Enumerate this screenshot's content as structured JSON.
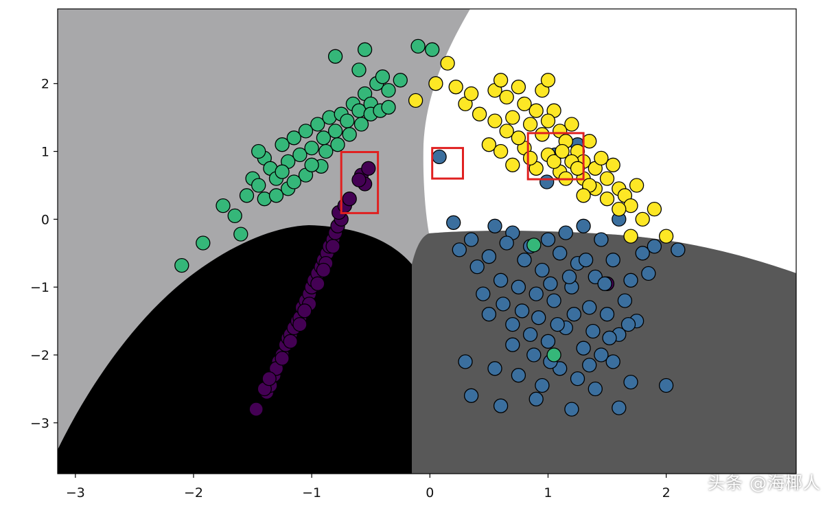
{
  "chart_data": {
    "type": "scatter",
    "title": "",
    "xlabel": "",
    "ylabel": "",
    "xlim": [
      -3.15,
      3.1
    ],
    "ylim": [
      -3.75,
      3.1
    ],
    "xticks": [
      -3,
      -2,
      -1,
      0,
      1,
      2
    ],
    "yticks": [
      -3,
      -2,
      -1,
      0,
      1,
      2
    ],
    "tick_labels_x": [
      "−3",
      "−2",
      "−1",
      "0",
      "1",
      "2"
    ],
    "tick_labels_y": [
      "−3",
      "−2",
      "−1",
      "0",
      "1",
      "2"
    ],
    "background_regions": [
      {
        "class": "green",
        "color": "#a8a8aa"
      },
      {
        "class": "yellow",
        "color": "#ffffff"
      },
      {
        "class": "blue",
        "color": "#585858"
      },
      {
        "class": "purple",
        "color": "#000000"
      }
    ],
    "series": [
      {
        "name": "class-0",
        "color": "#440154",
        "points": [
          [
            -1.47,
            -2.8
          ],
          [
            -1.38,
            -2.55
          ],
          [
            -1.35,
            -2.45
          ],
          [
            -1.4,
            -2.5
          ],
          [
            -1.32,
            -2.3
          ],
          [
            -1.28,
            -2.1
          ],
          [
            -1.3,
            -2.2
          ],
          [
            -1.25,
            -2.0
          ],
          [
            -1.22,
            -1.85
          ],
          [
            -1.2,
            -1.75
          ],
          [
            -1.18,
            -1.7
          ],
          [
            -1.15,
            -1.6
          ],
          [
            -1.12,
            -1.5
          ],
          [
            -1.1,
            -1.45
          ],
          [
            -1.08,
            -1.3
          ],
          [
            -1.05,
            -1.2
          ],
          [
            -1.02,
            -1.1
          ],
          [
            -1.0,
            -1.0
          ],
          [
            -0.98,
            -0.9
          ],
          [
            -0.95,
            -0.8
          ],
          [
            -0.92,
            -0.7
          ],
          [
            -0.9,
            -0.6
          ],
          [
            -0.87,
            -0.5
          ],
          [
            -0.85,
            -0.4
          ],
          [
            -0.82,
            -0.3
          ],
          [
            -0.8,
            -0.2
          ],
          [
            -0.78,
            -0.1
          ],
          [
            -0.75,
            0.0
          ],
          [
            -0.77,
            0.1
          ],
          [
            -0.72,
            0.2
          ],
          [
            -1.25,
            -2.05
          ],
          [
            -1.18,
            -1.8
          ],
          [
            -1.1,
            -1.55
          ],
          [
            -1.02,
            -1.25
          ],
          [
            -0.95,
            -0.95
          ],
          [
            -0.88,
            -0.65
          ],
          [
            -0.82,
            -0.4
          ],
          [
            -1.36,
            -2.35
          ],
          [
            -1.06,
            -1.35
          ],
          [
            -0.9,
            -0.75
          ],
          [
            -0.58,
            0.65
          ],
          [
            -0.55,
            0.52
          ],
          [
            -0.52,
            0.75
          ],
          [
            -0.6,
            0.58
          ],
          [
            -0.68,
            0.3
          ],
          [
            1.35,
            0.47
          ],
          [
            1.5,
            -0.95
          ]
        ]
      },
      {
        "name": "class-1",
        "color": "#3b6f9e",
        "points": [
          [
            0.08,
            0.92
          ],
          [
            1.06,
            0.95
          ],
          [
            1.25,
            1.1
          ],
          [
            0.99,
            0.55
          ],
          [
            0.2,
            -0.05
          ],
          [
            0.35,
            -0.3
          ],
          [
            0.55,
            -0.1
          ],
          [
            0.7,
            -0.2
          ],
          [
            0.85,
            -0.4
          ],
          [
            1.0,
            -0.3
          ],
          [
            1.15,
            -0.2
          ],
          [
            1.3,
            -0.1
          ],
          [
            1.45,
            -0.3
          ],
          [
            1.6,
            0.0
          ],
          [
            1.8,
            -0.5
          ],
          [
            0.4,
            -0.7
          ],
          [
            0.6,
            -0.9
          ],
          [
            0.75,
            -1.0
          ],
          [
            0.9,
            -1.1
          ],
          [
            1.05,
            -1.2
          ],
          [
            1.2,
            -1.0
          ],
          [
            1.35,
            -1.3
          ],
          [
            1.5,
            -1.4
          ],
          [
            1.65,
            -1.2
          ],
          [
            1.85,
            -0.8
          ],
          [
            0.5,
            -1.4
          ],
          [
            0.7,
            -1.55
          ],
          [
            0.85,
            -1.7
          ],
          [
            1.0,
            -1.8
          ],
          [
            1.15,
            -1.6
          ],
          [
            1.3,
            -1.9
          ],
          [
            1.45,
            -2.0
          ],
          [
            1.6,
            -1.7
          ],
          [
            1.75,
            -1.5
          ],
          [
            0.3,
            -2.1
          ],
          [
            0.55,
            -2.2
          ],
          [
            0.75,
            -2.3
          ],
          [
            0.95,
            -2.45
          ],
          [
            1.1,
            -2.2
          ],
          [
            1.25,
            -2.35
          ],
          [
            1.4,
            -2.5
          ],
          [
            1.55,
            -2.1
          ],
          [
            1.7,
            -2.4
          ],
          [
            0.35,
            -2.6
          ],
          [
            0.6,
            -2.75
          ],
          [
            0.9,
            -2.65
          ],
          [
            1.2,
            -2.8
          ],
          [
            1.6,
            -2.78
          ],
          [
            2.0,
            -2.45
          ],
          [
            0.65,
            -0.35
          ],
          [
            0.8,
            -0.6
          ],
          [
            0.95,
            -0.75
          ],
          [
            1.1,
            -0.5
          ],
          [
            1.25,
            -0.65
          ],
          [
            1.4,
            -0.85
          ],
          [
            1.55,
            -0.6
          ],
          [
            1.7,
            -0.9
          ],
          [
            1.9,
            -0.4
          ],
          [
            2.1,
            -0.45
          ],
          [
            0.45,
            -1.1
          ],
          [
            0.62,
            -1.25
          ],
          [
            0.78,
            -1.35
          ],
          [
            0.92,
            -1.45
          ],
          [
            1.08,
            -1.55
          ],
          [
            1.22,
            -1.4
          ],
          [
            1.38,
            -1.65
          ],
          [
            1.52,
            -1.75
          ],
          [
            1.68,
            -1.55
          ],
          [
            0.25,
            -0.45
          ],
          [
            0.5,
            -0.55
          ],
          [
            1.02,
            -0.95
          ],
          [
            1.18,
            -0.85
          ],
          [
            1.32,
            -0.6
          ],
          [
            1.48,
            -0.95
          ],
          [
            0.88,
            -2.0
          ],
          [
            1.02,
            -2.1
          ],
          [
            1.35,
            -2.15
          ],
          [
            0.7,
            -1.85
          ]
        ]
      },
      {
        "name": "class-2",
        "color": "#35b779",
        "points": [
          [
            -2.1,
            -0.68
          ],
          [
            -1.92,
            -0.35
          ],
          [
            -1.75,
            0.2
          ],
          [
            -1.6,
            -0.22
          ],
          [
            -1.55,
            0.35
          ],
          [
            -1.5,
            0.6
          ],
          [
            -1.45,
            0.5
          ],
          [
            -1.4,
            0.9
          ],
          [
            -1.35,
            0.75
          ],
          [
            -1.3,
            0.6
          ],
          [
            -1.25,
            1.1
          ],
          [
            -1.2,
            0.85
          ],
          [
            -1.15,
            1.2
          ],
          [
            -1.1,
            0.95
          ],
          [
            -1.05,
            1.3
          ],
          [
            -1.0,
            1.05
          ],
          [
            -0.95,
            1.4
          ],
          [
            -0.9,
            1.2
          ],
          [
            -0.85,
            1.5
          ],
          [
            -0.8,
            1.3
          ],
          [
            -0.75,
            1.55
          ],
          [
            -0.7,
            1.45
          ],
          [
            -0.65,
            1.7
          ],
          [
            -0.6,
            1.6
          ],
          [
            -0.55,
            1.85
          ],
          [
            -0.5,
            1.7
          ],
          [
            -0.45,
            2.0
          ],
          [
            -0.4,
            2.1
          ],
          [
            -0.35,
            1.9
          ],
          [
            -0.8,
            2.4
          ],
          [
            -0.6,
            2.2
          ],
          [
            -0.55,
            2.5
          ],
          [
            -0.25,
            2.05
          ],
          [
            -0.1,
            2.55
          ],
          [
            0.02,
            2.5
          ],
          [
            -1.65,
            0.05
          ],
          [
            -1.4,
            0.3
          ],
          [
            -1.2,
            0.45
          ],
          [
            -1.05,
            0.65
          ],
          [
            -0.92,
            0.78
          ],
          [
            -1.3,
            0.35
          ],
          [
            -1.15,
            0.55
          ],
          [
            -1.0,
            0.8
          ],
          [
            -0.88,
            1.0
          ],
          [
            -0.78,
            1.1
          ],
          [
            -0.68,
            1.25
          ],
          [
            -0.58,
            1.4
          ],
          [
            -0.5,
            1.55
          ],
          [
            -0.42,
            1.6
          ],
          [
            -0.35,
            1.65
          ],
          [
            1.05,
            -2.0
          ],
          [
            0.88,
            -0.38
          ],
          [
            -1.45,
            1.0
          ],
          [
            -1.25,
            0.7
          ]
        ]
      },
      {
        "name": "class-3",
        "color": "#fde725",
        "points": [
          [
            -0.12,
            1.75
          ],
          [
            0.05,
            2.0
          ],
          [
            0.15,
            2.3
          ],
          [
            0.22,
            1.95
          ],
          [
            0.3,
            1.7
          ],
          [
            0.35,
            1.85
          ],
          [
            0.42,
            1.55
          ],
          [
            0.5,
            1.1
          ],
          [
            0.55,
            1.9
          ],
          [
            0.6,
            2.05
          ],
          [
            0.65,
            1.8
          ],
          [
            0.7,
            1.5
          ],
          [
            0.75,
            1.95
          ],
          [
            0.8,
            1.7
          ],
          [
            0.85,
            1.4
          ],
          [
            0.9,
            1.6
          ],
          [
            0.95,
            1.9
          ],
          [
            1.0,
            2.05
          ],
          [
            1.05,
            1.6
          ],
          [
            1.1,
            1.3
          ],
          [
            1.15,
            1.15
          ],
          [
            1.2,
            1.4
          ],
          [
            1.25,
            1.0
          ],
          [
            1.3,
            0.85
          ],
          [
            1.35,
            1.15
          ],
          [
            1.4,
            0.75
          ],
          [
            1.45,
            0.9
          ],
          [
            1.5,
            0.6
          ],
          [
            1.55,
            0.8
          ],
          [
            1.6,
            0.45
          ],
          [
            1.65,
            0.35
          ],
          [
            1.7,
            0.2
          ],
          [
            1.75,
            0.5
          ],
          [
            1.8,
            0.0
          ],
          [
            1.9,
            0.15
          ],
          [
            2.0,
            -0.25
          ],
          [
            1.7,
            -0.25
          ],
          [
            0.6,
            1.0
          ],
          [
            0.7,
            0.8
          ],
          [
            0.8,
            1.05
          ],
          [
            0.9,
            0.75
          ],
          [
            1.0,
            0.95
          ],
          [
            1.1,
            0.7
          ],
          [
            1.2,
            0.85
          ],
          [
            1.3,
            0.6
          ],
          [
            1.4,
            0.45
          ],
          [
            1.5,
            0.3
          ],
          [
            1.6,
            0.15
          ],
          [
            0.75,
            1.2
          ],
          [
            0.85,
            0.9
          ],
          [
            0.95,
            1.25
          ],
          [
            1.05,
            0.85
          ],
          [
            1.15,
            0.6
          ],
          [
            1.25,
            0.75
          ],
          [
            1.35,
            0.5
          ],
          [
            0.65,
            1.3
          ],
          [
            0.55,
            1.45
          ],
          [
            1.0,
            1.45
          ],
          [
            1.3,
            0.35
          ],
          [
            1.12,
            1.0
          ]
        ]
      }
    ],
    "highlight_boxes": [
      {
        "x0": -0.75,
        "x1": -0.44,
        "y0": 0.09,
        "y1": 0.99
      },
      {
        "x0": 0.02,
        "x1": 0.28,
        "y0": 0.6,
        "y1": 1.05
      },
      {
        "x0": 0.83,
        "x1": 1.3,
        "y0": 0.59,
        "y1": 1.27
      }
    ],
    "highlight_color": "#e02020"
  },
  "watermark": "头条 @海椰人"
}
